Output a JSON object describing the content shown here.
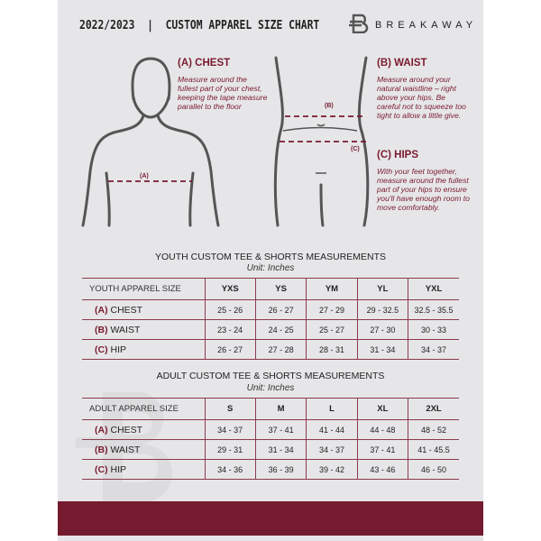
{
  "header": {
    "title": "2022/2023  |  CUSTOM APPAREL SIZE CHART",
    "brand": "BREAKAWAY"
  },
  "measure": {
    "chest": {
      "title": "(A) CHEST",
      "text": "Measure around the fullest part of your chest, keeping the tape measure parallel to the floor",
      "marker": "(A)"
    },
    "waist": {
      "title": "(B) WAIST",
      "text": "Measure around your natural waistline – right above your hips. Be careful not to squeeze too tight to allow a little give.",
      "marker": "(B)"
    },
    "hips": {
      "title": "(C) HIPS",
      "text": "With your feet together, measure around the fullest part of your hips to ensure you'll have enough room to move comfortably.",
      "marker": "(C)"
    }
  },
  "youth": {
    "title": "YOUTH CUSTOM TEE & SHORTS MEASUREMENTS",
    "unit": "Unit: Inches",
    "header": "YOUTH APPAREL SIZE",
    "sizes": [
      "YXS",
      "YS",
      "YM",
      "YL",
      "YXL"
    ],
    "rows": [
      {
        "letter": "(A)",
        "name": "CHEST",
        "values": [
          "25 - 26",
          "26 - 27",
          "27 - 29",
          "29 - 32.5",
          "32.5 - 35.5"
        ]
      },
      {
        "letter": "(B)",
        "name": "WAIST",
        "values": [
          "23 - 24",
          "24 - 25",
          "25 - 27",
          "27 - 30",
          "30 - 33"
        ]
      },
      {
        "letter": "(C)",
        "name": "HIP",
        "values": [
          "26 - 27",
          "27 - 28",
          "28 - 31",
          "31 - 34",
          "34 - 37"
        ]
      }
    ]
  },
  "adult": {
    "title": "ADULT CUSTOM TEE & SHORTS MEASUREMENTS",
    "unit": "Unit: Inches",
    "header": "ADULT APPAREL SIZE",
    "sizes": [
      "S",
      "M",
      "L",
      "XL",
      "2XL"
    ],
    "rows": [
      {
        "letter": "(A)",
        "name": "CHEST",
        "values": [
          "34 - 37",
          "37 - 41",
          "41 - 44",
          "44 - 48",
          "48 - 52"
        ]
      },
      {
        "letter": "(B)",
        "name": "WAIST",
        "values": [
          "29 - 31",
          "31 - 34",
          "34 - 37",
          "37 - 41",
          "41 - 45.5"
        ]
      },
      {
        "letter": "(C)",
        "name": "HIP",
        "values": [
          "34 - 36",
          "36 - 39",
          "39 - 42",
          "43 - 46",
          "46 - 50"
        ]
      }
    ]
  },
  "colors": {
    "accent": "#741b2f",
    "background": "#e6e6e8"
  }
}
